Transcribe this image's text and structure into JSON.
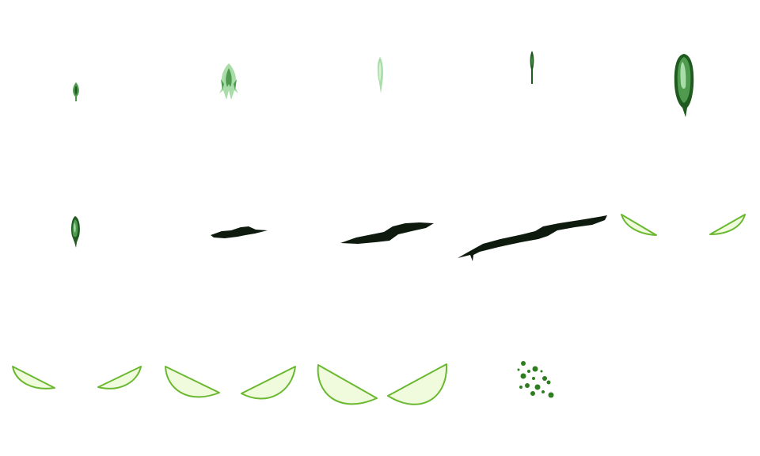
{
  "sprite_sheet": {
    "grid": {
      "columns": 5,
      "rows": 3
    },
    "colors": {
      "dark_green": "#1f5a1f",
      "mid_green": "#4f9a4f",
      "light_green": "#a8dca8",
      "pale_green": "#d6f3d0",
      "blade_outline": "#6ab830",
      "blade_fill": "#effbdc",
      "shadow": "#0d1a0d",
      "dot_green": "#2e7d1e"
    },
    "frames": [
      {
        "name": "tiny-leaf-sprite",
        "row": 1,
        "col": 1
      },
      {
        "name": "leaf-burst-sprite",
        "row": 1,
        "col": 2
      },
      {
        "name": "thin-sprout-sprite",
        "row": 1,
        "col": 3
      },
      {
        "name": "dark-sprout-sprite",
        "row": 1,
        "col": 4
      },
      {
        "name": "large-pod-sprite",
        "row": 1,
        "col": 5
      },
      {
        "name": "small-pod-sprite",
        "row": 2,
        "col": 1
      },
      {
        "name": "shadow-slash-small",
        "row": 2,
        "col": 2
      },
      {
        "name": "shadow-slash-medium",
        "row": 2,
        "col": 3
      },
      {
        "name": "shadow-slash-large",
        "row": 2,
        "col": 4
      },
      {
        "name": "leaf-blade-pair-1",
        "row": 2,
        "col": 5
      },
      {
        "name": "leaf-blade-pair-2",
        "row": 3,
        "col": 1
      },
      {
        "name": "leaf-blade-pair-3",
        "row": 3,
        "col": 2
      },
      {
        "name": "leaf-blade-pair-4",
        "row": 3,
        "col": 3
      },
      {
        "name": "seed-scatter",
        "row": 3,
        "col": 4
      }
    ]
  }
}
